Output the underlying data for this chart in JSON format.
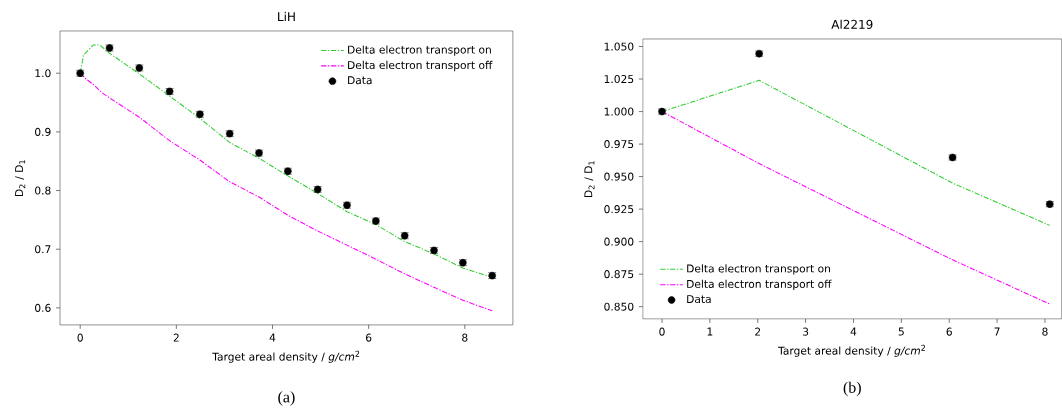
{
  "chart_data": [
    {
      "type": "line",
      "title": "LiH",
      "xlabel": "Target areal density / *g/cm*$^{2}$",
      "ylabel": "D$_{2}$ / D$_{1}$",
      "annotations": [
        "(a)"
      ],
      "xlim": [
        -0.42,
        9.0
      ],
      "ylim": [
        0.571,
        1.072
      ],
      "xticks": [
        0,
        2,
        4,
        6,
        8
      ],
      "yticks": [
        {
          "value": 0.6,
          "label": "0.6"
        },
        {
          "value": 0.7,
          "label": "0.7"
        },
        {
          "value": 0.8,
          "label": "0.8"
        },
        {
          "value": 0.9,
          "label": "0.9"
        },
        {
          "value": 1.0,
          "label": "1.0"
        }
      ],
      "legend": "top right",
      "grid": false,
      "series": [
        {
          "name": "Delta electron transport on",
          "color": "#33cc33",
          "marker": "none",
          "line_style": "dashed",
          "x": [
            0,
            0.07,
            0.27,
            0.41,
            0.61,
            1.23,
            1.86,
            2.49,
            3.11,
            3.72,
            4.32,
            4.94,
            5.55,
            6.15,
            6.75,
            7.36,
            7.96,
            8.57
          ],
          "values": [
            1.0,
            1.031,
            1.048,
            1.048,
            1.034,
            0.999,
            0.961,
            0.923,
            0.882,
            0.855,
            0.825,
            0.795,
            0.764,
            0.742,
            0.713,
            0.692,
            0.668,
            0.652
          ]
        },
        {
          "name": "Delta electron transport off",
          "color": "#ff00ff",
          "marker": "none",
          "line_style": "dashed",
          "x": [
            0,
            0.11,
            0.3,
            0.45,
            0.61,
            1.23,
            1.86,
            2.49,
            3.11,
            3.72,
            4.32,
            4.94,
            5.55,
            6.15,
            6.75,
            7.36,
            7.96,
            8.57
          ],
          "values": [
            1.0,
            0.991,
            0.979,
            0.967,
            0.958,
            0.925,
            0.885,
            0.852,
            0.815,
            0.789,
            0.758,
            0.731,
            0.707,
            0.683,
            0.658,
            0.635,
            0.613,
            0.595
          ]
        },
        {
          "name": "Data",
          "type": "scatter",
          "color": "#000000",
          "marker": "circle",
          "x": [
            0,
            0.61,
            1.23,
            1.86,
            2.49,
            3.11,
            3.72,
            4.32,
            4.94,
            5.55,
            6.15,
            6.75,
            7.36,
            7.96,
            8.57
          ],
          "values": [
            1.0,
            1.043,
            1.009,
            0.969,
            0.93,
            0.897,
            0.864,
            0.833,
            0.802,
            0.775,
            0.748,
            0.723,
            0.698,
            0.677,
            0.655
          ],
          "errors": [
            0.005,
            0.005,
            0.005,
            0.005,
            0.005,
            0.005,
            0.005,
            0.005,
            0.005,
            0.005,
            0.005,
            0.005,
            0.005,
            0.005,
            0.005
          ]
        }
      ]
    },
    {
      "type": "line",
      "title": "Al2219",
      "xlabel": "Target areal density / *g/cm*$^{2}$",
      "ylabel": "D$_{2}$ / D$_{1}$",
      "annotations": [
        "(b)"
      ],
      "xlim": [
        -0.4,
        8.35
      ],
      "ylim": [
        0.8406,
        1.0558
      ],
      "xticks": [
        0,
        1,
        2,
        3,
        4,
        5,
        6,
        7,
        8
      ],
      "yticks": [
        {
          "value": 0.85,
          "label": "0.850"
        },
        {
          "value": 0.875,
          "label": "0.875"
        },
        {
          "value": 0.9,
          "label": "0.900"
        },
        {
          "value": 0.925,
          "label": "0.925"
        },
        {
          "value": 0.95,
          "label": "0.950"
        },
        {
          "value": 0.975,
          "label": "0.975"
        },
        {
          "value": 1.0,
          "label": "1.000"
        },
        {
          "value": 1.025,
          "label": "1.025"
        },
        {
          "value": 1.05,
          "label": "1.050"
        }
      ],
      "legend": "bottom left",
      "grid": false,
      "series": [
        {
          "name": "Delta electron transport on",
          "color": "#33cc33",
          "marker": "none",
          "line_style": "dashed",
          "x": [
            0,
            2.03,
            6.07,
            8.1
          ],
          "values": [
            1.0,
            1.024,
            0.945,
            0.9125
          ]
        },
        {
          "name": "Delta electron transport off",
          "color": "#ff00ff",
          "marker": "none",
          "line_style": "dashed",
          "x": [
            0,
            2.03,
            6.07,
            8.1
          ],
          "values": [
            1.0,
            0.96,
            0.886,
            0.852
          ]
        },
        {
          "name": "Data",
          "type": "scatter",
          "color": "#000000",
          "marker": "circle",
          "x": [
            0,
            2.03,
            6.07,
            8.1
          ],
          "values": [
            1.0,
            1.0445,
            0.9647,
            0.9288
          ],
          "errors": [
            0.002,
            0.002,
            0.002,
            0.002
          ]
        }
      ]
    }
  ]
}
